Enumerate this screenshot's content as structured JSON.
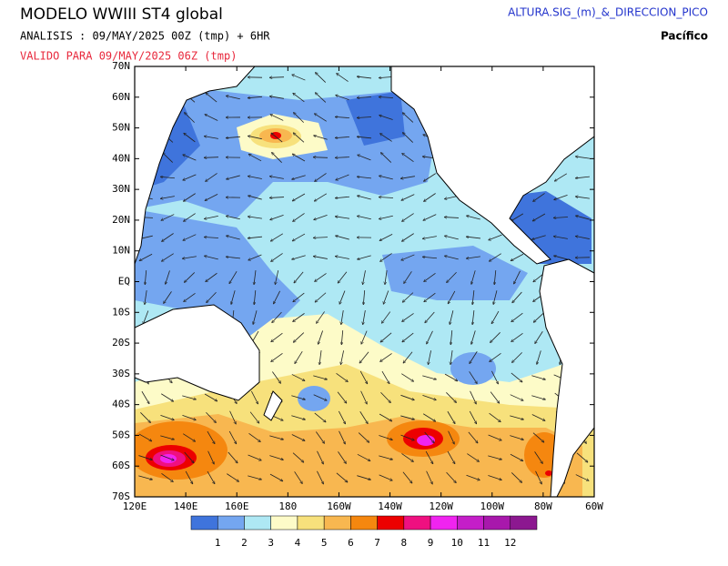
{
  "header": {
    "title": "MODELO WWIII ST4 global",
    "analysis": "ANALISIS : 09/MAY/2025 00Z  (tmp) + 6HR",
    "valid": "VALIDO PARA  09/MAY/2025 06Z  (tmp)",
    "product": "ALTURA.SIG_(m)_&_DIRECCION_PICO",
    "region": "Pacífico"
  },
  "map": {
    "lat_labels": [
      "70N",
      "60N",
      "50N",
      "40N",
      "30N",
      "20N",
      "10N",
      "EQ",
      "10S",
      "20S",
      "30S",
      "40S",
      "50S",
      "60S",
      "70S"
    ],
    "lon_labels": [
      "120E",
      "140E",
      "160E",
      "180",
      "160W",
      "140W",
      "120W",
      "100W",
      "80W",
      "60W"
    ]
  },
  "colorbar": {
    "colors": [
      "#3f74dc",
      "#74a6f0",
      "#aee8f4",
      "#fdfbc8",
      "#f7e17c",
      "#f8b750",
      "#f5870f",
      "#ec0000",
      "#ef1080",
      "#f024f0",
      "#c41ec8",
      "#a818ac",
      "#8c1890"
    ],
    "labels": [
      1,
      2,
      3,
      4,
      5,
      6,
      7,
      8,
      9,
      10,
      11,
      12
    ]
  }
}
